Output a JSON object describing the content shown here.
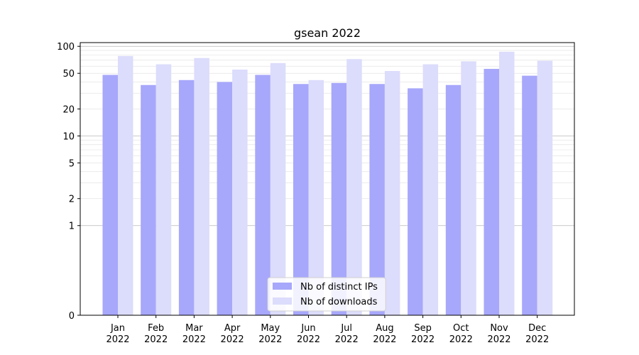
{
  "chart_data": {
    "type": "bar",
    "title": "gsean 2022",
    "xlabel": "",
    "ylabel": "",
    "y_scale": "symlog",
    "ylim": [
      0,
      110
    ],
    "y_ticks": [
      0,
      1,
      2,
      5,
      10,
      20,
      50,
      100
    ],
    "grid": "y",
    "legend_position": "bottom-center",
    "categories": [
      [
        "Jan",
        "2022"
      ],
      [
        "Feb",
        "2022"
      ],
      [
        "Mar",
        "2022"
      ],
      [
        "Apr",
        "2022"
      ],
      [
        "May",
        "2022"
      ],
      [
        "Jun",
        "2022"
      ],
      [
        "Jul",
        "2022"
      ],
      [
        "Aug",
        "2022"
      ],
      [
        "Sep",
        "2022"
      ],
      [
        "Oct",
        "2022"
      ],
      [
        "Nov",
        "2022"
      ],
      [
        "Dec",
        "2022"
      ]
    ],
    "series": [
      {
        "name": "Nb of distinct IPs",
        "color": "#a7a7fb",
        "values": [
          48,
          37,
          42,
          40,
          48,
          38,
          39,
          38,
          34,
          37,
          56,
          47
        ]
      },
      {
        "name": "Nb of downloads",
        "color": "#dcdcfc",
        "values": [
          78,
          63,
          74,
          55,
          65,
          42,
          72,
          53,
          63,
          68,
          87,
          69
        ]
      }
    ]
  }
}
